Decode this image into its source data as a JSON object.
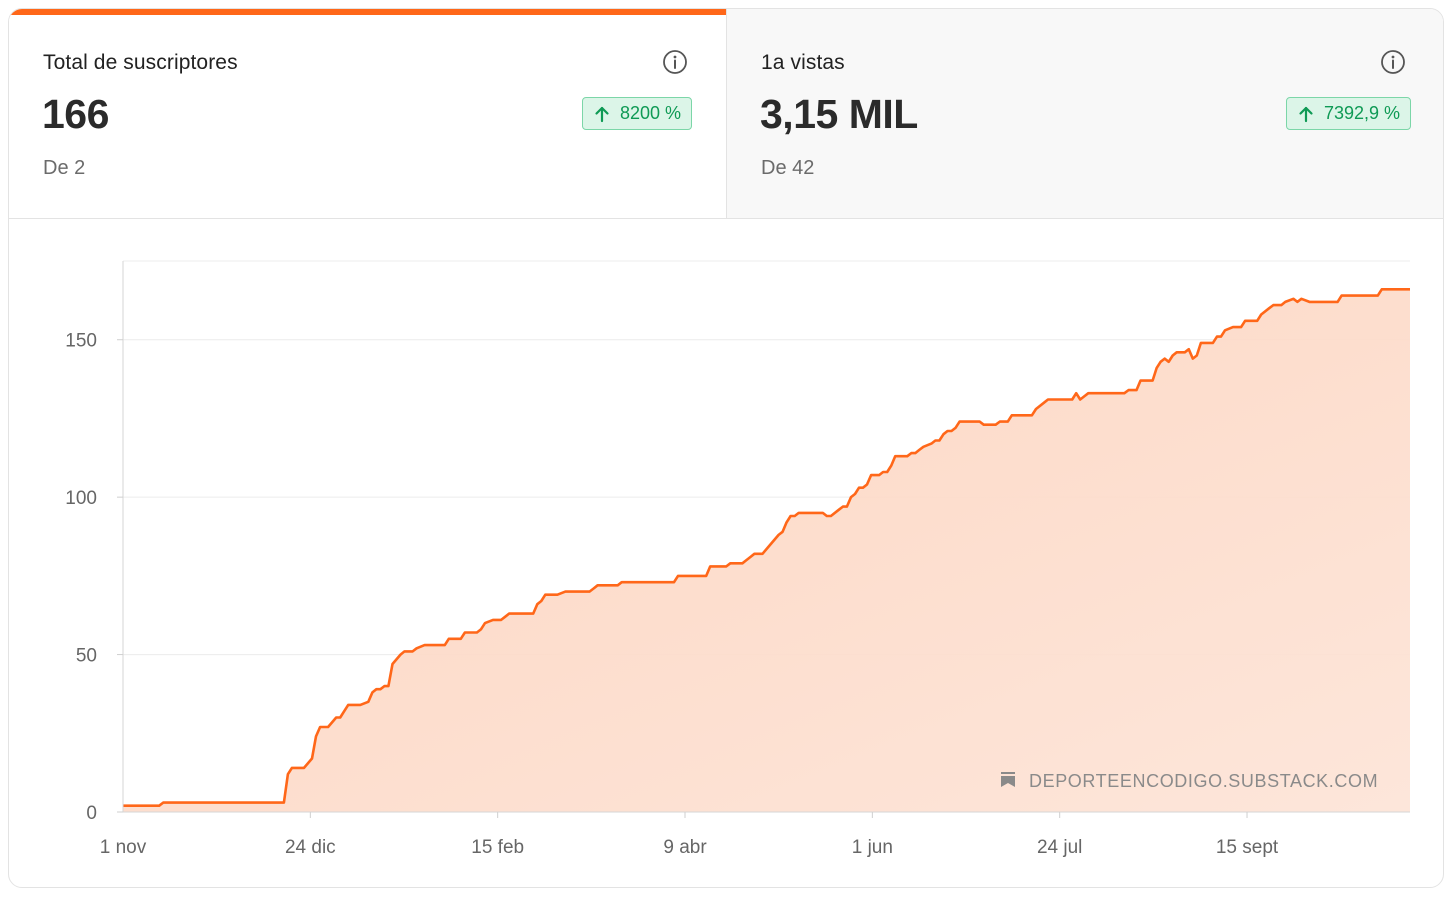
{
  "stats": [
    {
      "title": "Total de suscriptores",
      "value": "166",
      "change": "8200 %",
      "from": "De 2",
      "active": true
    },
    {
      "title": "1a vistas",
      "value": "3,15 MIL",
      "change": "7392,9 %",
      "from": "De 42",
      "active": false
    }
  ],
  "watermark": "DEPORTEENCODIGO.SUBSTACK.COM",
  "colors": {
    "accent": "#ff6719",
    "area": "#fdd6c2",
    "positive": "#0f9a55",
    "badge_bg": "#dcf5e8",
    "grid": "#ececec"
  },
  "chart_data": {
    "type": "area",
    "title": "",
    "xlabel": "",
    "ylabel": "",
    "ylim": [
      0,
      175
    ],
    "yticks": [
      0,
      50,
      100,
      150
    ],
    "ytick_labels": [
      "0",
      "50",
      "100",
      "150"
    ],
    "xlim": [
      0,
      365
    ],
    "xticks": [
      0,
      53,
      106,
      159,
      212,
      265,
      318
    ],
    "xtick_labels": [
      "1 nov",
      "24 dic",
      "15 feb",
      "9 abr",
      "1 jun",
      "24 jul",
      "15 sept"
    ],
    "grid": true,
    "series": [
      {
        "values": [
          [
            0,
            2
          ],
          [
            9,
            2
          ],
          [
            10,
            3
          ],
          [
            40,
            3
          ],
          [
            41,
            12
          ],
          [
            42,
            14
          ],
          [
            45,
            14
          ],
          [
            47,
            17
          ],
          [
            48,
            24
          ],
          [
            49,
            27
          ],
          [
            51,
            27
          ],
          [
            53,
            30
          ],
          [
            54,
            30
          ],
          [
            55,
            32
          ],
          [
            56,
            34
          ],
          [
            59,
            34
          ],
          [
            61,
            35
          ],
          [
            62,
            38
          ],
          [
            63,
            39
          ],
          [
            64,
            39
          ],
          [
            65,
            40
          ],
          [
            66,
            40
          ],
          [
            67,
            47
          ],
          [
            69,
            50
          ],
          [
            70,
            51
          ],
          [
            72,
            51
          ],
          [
            73,
            52
          ],
          [
            75,
            53
          ],
          [
            80,
            53
          ],
          [
            81,
            55
          ],
          [
            84,
            55
          ],
          [
            85,
            57
          ],
          [
            88,
            57
          ],
          [
            89,
            58
          ],
          [
            90,
            60
          ],
          [
            92,
            61
          ],
          [
            94,
            61
          ],
          [
            95,
            62
          ],
          [
            96,
            63
          ],
          [
            102,
            63
          ],
          [
            103,
            66
          ],
          [
            104,
            67
          ],
          [
            105,
            69
          ],
          [
            108,
            69
          ],
          [
            110,
            70
          ],
          [
            116,
            70
          ],
          [
            117,
            71
          ],
          [
            118,
            72
          ],
          [
            123,
            72
          ],
          [
            124,
            73
          ],
          [
            137,
            73
          ],
          [
            138,
            75
          ],
          [
            145,
            75
          ],
          [
            146,
            78
          ],
          [
            150,
            78
          ],
          [
            151,
            79
          ],
          [
            154,
            79
          ],
          [
            155,
            80
          ],
          [
            156,
            81
          ],
          [
            157,
            82
          ],
          [
            159,
            82
          ],
          [
            161,
            85
          ],
          [
            163,
            88
          ],
          [
            164,
            89
          ],
          [
            165,
            92
          ],
          [
            166,
            94
          ],
          [
            167,
            94
          ],
          [
            168,
            95
          ],
          [
            174,
            95
          ],
          [
            175,
            94
          ],
          [
            176,
            94
          ],
          [
            178,
            96
          ],
          [
            179,
            97
          ],
          [
            180,
            97
          ],
          [
            181,
            100
          ],
          [
            182,
            101
          ],
          [
            183,
            103
          ],
          [
            184,
            103
          ],
          [
            185,
            104
          ],
          [
            186,
            107
          ],
          [
            188,
            107
          ],
          [
            189,
            108
          ],
          [
            190,
            108
          ],
          [
            191,
            110
          ],
          [
            192,
            113
          ],
          [
            195,
            113
          ],
          [
            196,
            114
          ],
          [
            197,
            114
          ],
          [
            198,
            115
          ],
          [
            199,
            116
          ],
          [
            201,
            117
          ],
          [
            202,
            118
          ],
          [
            203,
            118
          ],
          [
            204,
            120
          ],
          [
            205,
            121
          ],
          [
            206,
            121
          ],
          [
            207,
            122
          ],
          [
            208,
            124
          ],
          [
            210,
            124
          ],
          [
            211,
            124
          ],
          [
            213,
            124
          ],
          [
            214,
            123
          ],
          [
            217,
            123
          ],
          [
            218,
            124
          ],
          [
            220,
            124
          ],
          [
            221,
            126
          ],
          [
            226,
            126
          ],
          [
            227,
            128
          ],
          [
            229,
            130
          ],
          [
            230,
            131
          ],
          [
            236,
            131
          ],
          [
            237,
            133
          ],
          [
            238,
            131
          ],
          [
            239,
            132
          ],
          [
            240,
            133
          ],
          [
            248,
            133
          ],
          [
            249,
            133
          ],
          [
            250,
            134
          ],
          [
            252,
            134
          ],
          [
            253,
            137
          ],
          [
            256,
            137
          ],
          [
            257,
            141
          ],
          [
            258,
            143
          ],
          [
            259,
            144
          ],
          [
            260,
            143
          ],
          [
            261,
            145
          ],
          [
            262,
            146
          ],
          [
            264,
            146
          ],
          [
            265,
            147
          ],
          [
            266,
            144
          ],
          [
            267,
            145
          ],
          [
            268,
            149
          ],
          [
            271,
            149
          ],
          [
            272,
            151
          ],
          [
            273,
            151
          ],
          [
            274,
            153
          ],
          [
            276,
            154
          ],
          [
            278,
            154
          ],
          [
            279,
            156
          ],
          [
            282,
            156
          ],
          [
            283,
            158
          ],
          [
            285,
            160
          ],
          [
            286,
            161
          ],
          [
            288,
            161
          ],
          [
            289,
            162
          ],
          [
            291,
            163
          ],
          [
            292,
            162
          ],
          [
            293,
            163
          ],
          [
            295,
            162
          ],
          [
            296,
            162
          ],
          [
            302,
            162
          ],
          [
            303,
            164
          ],
          [
            312,
            164
          ],
          [
            313,
            166
          ],
          [
            320,
            166
          ]
        ]
      }
    ]
  }
}
